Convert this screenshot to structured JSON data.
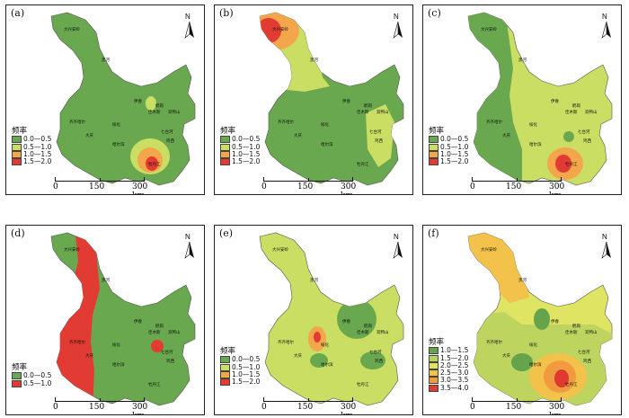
{
  "colors": {
    "c1": "#6aa84f",
    "c2": "#c9de63",
    "c3": "#f4a64b",
    "c4": "#e23b33",
    "c5": "#b5d350",
    "f1": "#65a34c",
    "f2": "#b9d35e",
    "f3": "#dfe463",
    "f4": "#f3c24a",
    "f5": "#f29a3f",
    "f6": "#df3a30"
  },
  "panels": [
    {
      "label": "(a)",
      "legend_title": "频率",
      "legend": [
        "0.0—0.5",
        "0.5—1.0",
        "1.0—1.5",
        "1.5—2.0"
      ]
    },
    {
      "label": "(b)",
      "legend_title": "频率",
      "legend": [
        "0.0—0.5",
        "0.5—1.0",
        "1.0—1.5",
        "1.5—2.0"
      ]
    },
    {
      "label": "(c)",
      "legend_title": "频率",
      "legend": [
        "0.0—0.5",
        "0.5—1.0",
        "1.0—1.5",
        "1.5—2.0"
      ]
    },
    {
      "label": "(d)",
      "legend_title": "频率",
      "legend": [
        "0.0—0.5",
        "0.5—1.0"
      ]
    },
    {
      "label": "(e)",
      "legend_title": "频率",
      "legend": [
        "0.0—0.5",
        "0.5—1.0",
        "1.0—1.5",
        "1.5—2.0"
      ]
    },
    {
      "label": "(f)",
      "legend_title": "频率",
      "legend": [
        "1.0—1.5",
        "1.5—2.0",
        "2.0—2.5",
        "2.5—3.0",
        "3.0—3.5",
        "3.5—4.0"
      ]
    }
  ],
  "north_label": "N",
  "scale": {
    "t0": "0",
    "t1": "150",
    "t2": "300 km"
  },
  "cities": {
    "daxinganling": "大兴安岭",
    "heihe": "黑河",
    "yichun": "伊春",
    "hegang": "鹤岗",
    "jiamusi": "佳木斯",
    "shuangyashan": "双鸭山",
    "qiqihar": "齐齐哈尔",
    "suihua": "绥化",
    "daqing": "大庆",
    "harbin": "哈尔滨",
    "qitaihe": "七台河",
    "jixi": "鸡西",
    "mudanjiang": "牡丹江"
  }
}
